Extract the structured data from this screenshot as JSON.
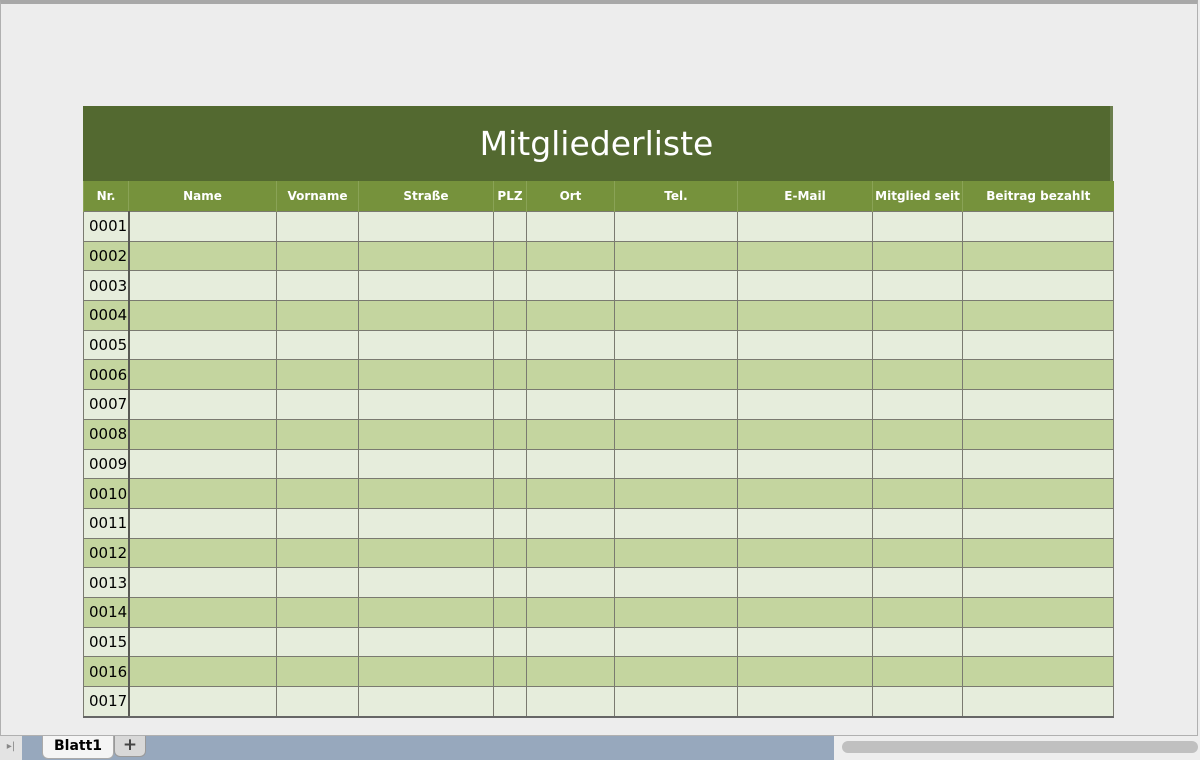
{
  "sheet": {
    "title": "Mitgliederliste",
    "columns": [
      "Nr.",
      "Name",
      "Vorname",
      "Straße",
      "PLZ",
      "Ort",
      "Tel.",
      "E-Mail",
      "Mitglied seit",
      "Beitrag bezahlt"
    ],
    "rows": [
      "0001",
      "0002",
      "0003",
      "0004",
      "0005",
      "0006",
      "0007",
      "0008",
      "0009",
      "0010",
      "0011",
      "0012",
      "0013",
      "0014",
      "0015",
      "0016",
      "0017"
    ]
  },
  "tabs": {
    "sheet_tab": "Blatt1",
    "add_label": "+",
    "nav_label": "▸|"
  },
  "colors": {
    "title_bg": "#536930",
    "header_bg": "#76923c",
    "row_light": "#e6eddc",
    "row_dark": "#c4d59f"
  }
}
